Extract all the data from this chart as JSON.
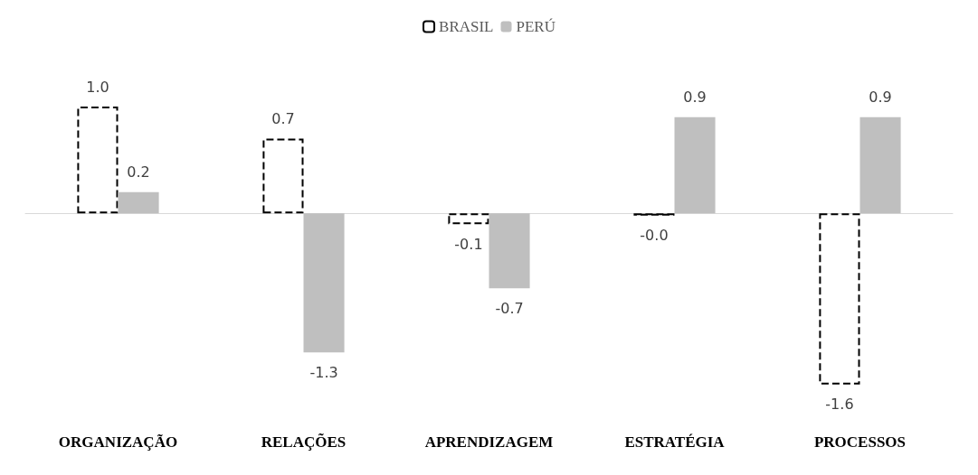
{
  "chart_data": {
    "type": "bar",
    "categories": [
      "ORGANIZAÇÃO",
      "RELAÇÕES",
      "APRENDIZAGEM",
      "ESTRATÉGIA",
      "PROCESSOS"
    ],
    "series": [
      {
        "name": "BRASIL",
        "color": "#000000",
        "line_style": "dashed",
        "values": [
          1.0,
          0.7,
          -0.1,
          -0.02,
          -1.6
        ],
        "value_labels": [
          "1.0",
          "0.7",
          "-0.1",
          "-0.0",
          "-1.6"
        ]
      },
      {
        "name": "PERÚ",
        "color": "#bfbfbf",
        "values": [
          0.2,
          -1.3,
          -0.7,
          0.9,
          0.9
        ],
        "value_labels": [
          "0.2",
          "-1.3",
          "-0.7",
          "0.9",
          "0.9"
        ]
      }
    ],
    "legend": "top"
  }
}
